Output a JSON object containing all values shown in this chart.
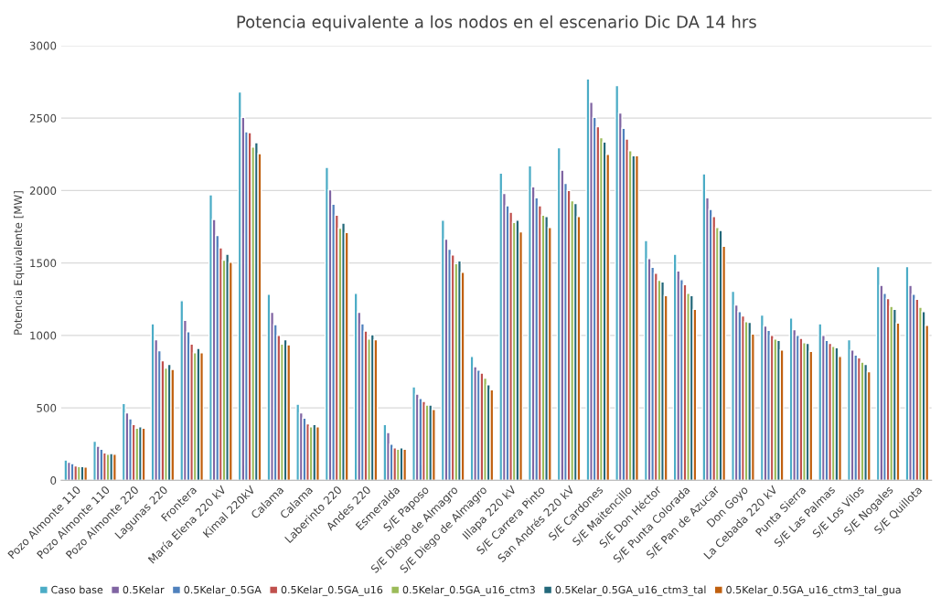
{
  "chart_data": {
    "type": "bar",
    "title": "Potencia equivalente a los nodos en el escenario Dic DA 14 hrs",
    "ylabel": "Potencia Equivalente [MW]",
    "categories": [
      "Pozo Almonte 110",
      "Pozo Almonte 110",
      "Pozo Almonte 220",
      "Lagunas 220",
      "Frontera",
      "María Elena 220 kV",
      "Kimal 220kV",
      "Calama",
      "Calama",
      "Laberinto 220",
      "Andes 220",
      "Esmeralda",
      "S/E Paposo",
      "S/E Diego de Almagro",
      "S/E Diego de Almagro",
      "Illapa 220 kV",
      "S/E Carrera Pinto",
      "San Andrés 220 kV",
      "S/E Cardones",
      "S/E Maitencillo",
      "S/E Don Héctor",
      "S/E Punta Colorada",
      "S/E Pan de Azucar",
      "Don Goyo",
      "La Cebada 220 kV",
      "Punta Sierra",
      "S/E Las Palmas",
      "S/E Los Vilos",
      "S/E Nogales",
      "S/E Quillota"
    ],
    "series": [
      {
        "name": "Caso base",
        "color": "#4bacc6",
        "values": [
          140,
          270,
          530,
          1080,
          1240,
          1970,
          2680,
          1285,
          525,
          2160,
          1290,
          385,
          645,
          1795,
          855,
          2120,
          2170,
          2295,
          2770,
          2725,
          1655,
          1560,
          2115,
          1305,
          1140,
          1120,
          1080,
          970,
          1475,
          1475
        ]
      },
      {
        "name": "0.5Kelar",
        "color": "#8064a2",
        "values": [
          125,
          235,
          465,
          970,
          1105,
          1800,
          2505,
          1160,
          465,
          2005,
          1160,
          330,
          595,
          1665,
          785,
          1980,
          2025,
          2140,
          2610,
          2535,
          1530,
          1445,
          1950,
          1210,
          1065,
          1040,
          1000,
          900,
          1345,
          1345
        ]
      },
      {
        "name": "0.5Kelar_0.5GA",
        "color": "#4f81bd",
        "values": [
          115,
          215,
          425,
          895,
          1025,
          1690,
          2405,
          1075,
          430,
          1905,
          1080,
          250,
          565,
          1595,
          760,
          1895,
          1950,
          2050,
          2505,
          2430,
          1470,
          1385,
          1870,
          1165,
          1035,
          1000,
          965,
          865,
          1290,
          1285
        ]
      },
      {
        "name": "0.5Kelar_0.5GA_u16",
        "color": "#c0504d",
        "values": [
          100,
          190,
          385,
          825,
          940,
          1605,
          2400,
          1000,
          390,
          1830,
          1030,
          225,
          545,
          1555,
          740,
          1850,
          1895,
          2000,
          2440,
          2355,
          1430,
          1350,
          1820,
          1135,
          1000,
          980,
          945,
          845,
          1255,
          1250
        ]
      },
      {
        "name": "0.5Kelar_0.5GA_u16_ctm3",
        "color": "#9bbb59",
        "values": [
          95,
          180,
          360,
          775,
          880,
          1520,
          2300,
          940,
          370,
          1740,
          975,
          215,
          520,
          1495,
          705,
          1780,
          1830,
          1930,
          2365,
          2275,
          1380,
          1290,
          1745,
          1095,
          975,
          950,
          925,
          815,
          1200,
          1195
        ]
      },
      {
        "name": "0.5Kelar_0.5GA_u16_ctm3_tal",
        "color": "#23687a",
        "values": [
          95,
          185,
          370,
          800,
          910,
          1560,
          2330,
          970,
          385,
          1775,
          1005,
          225,
          520,
          1515,
          660,
          1795,
          1820,
          1910,
          2335,
          2240,
          1370,
          1275,
          1725,
          1090,
          965,
          945,
          915,
          800,
          1180,
          1165
        ]
      },
      {
        "name": "0.5Kelar_0.5GA_u16_ctm3_tal_gua",
        "color": "#c0600f",
        "values": [
          92,
          180,
          360,
          765,
          880,
          1505,
          2255,
          935,
          370,
          1710,
          970,
          215,
          490,
          1435,
          625,
          1715,
          1745,
          1820,
          2250,
          2240,
          1275,
          1180,
          1615,
          1010,
          900,
          890,
          855,
          750,
          1085,
          1070
        ]
      }
    ],
    "ylim": [
      0,
      3000
    ],
    "yticks": [
      0,
      500,
      1000,
      1500,
      2000,
      2500,
      3000
    ],
    "grid": "y",
    "legend": "bottom"
  }
}
